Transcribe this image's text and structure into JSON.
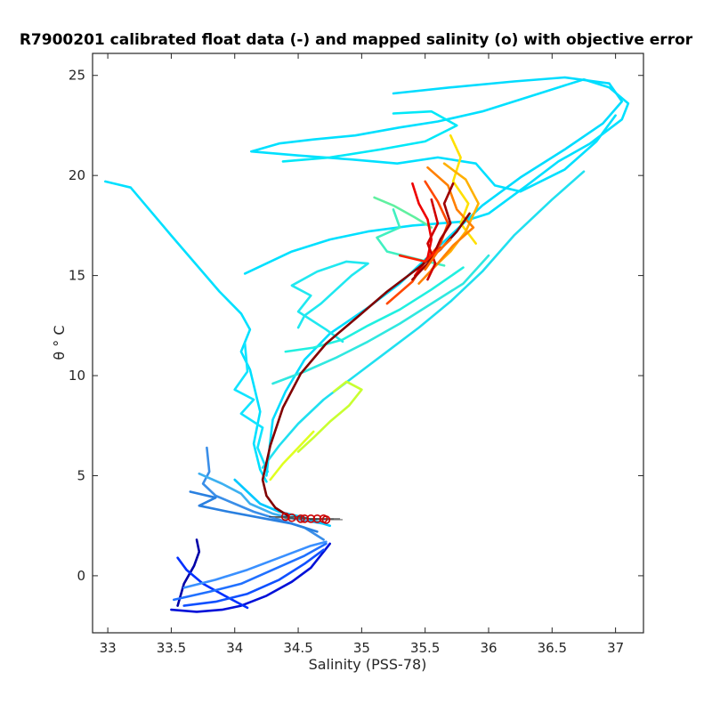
{
  "chart_data": {
    "type": "line",
    "title": "R7900201 calibrated float data (-) and mapped salinity (o) with objective error",
    "xlabel": "Salinity (PSS-78)",
    "ylabel": "θ ° C",
    "xlim": [
      32.88,
      37.22
    ],
    "ylim": [
      -2.85,
      26.1
    ],
    "xticks": [
      33,
      33.5,
      34,
      34.5,
      35,
      35.5,
      36,
      36.5,
      37
    ],
    "xtick_labels": [
      "33",
      "33.5",
      "34",
      "34.5",
      "35",
      "35.5",
      "36",
      "36.5",
      "37"
    ],
    "yticks": [
      0,
      5,
      10,
      15,
      20,
      25
    ],
    "ytick_labels": [
      "0",
      "5",
      "10",
      "15",
      "20",
      "25"
    ],
    "grid": false,
    "series": [
      {
        "color": "#0000a8",
        "points": [
          [
            33.55,
            -1.5
          ],
          [
            33.6,
            -0.4
          ],
          [
            33.68,
            0.5
          ],
          [
            33.72,
            1.2
          ],
          [
            33.7,
            1.8
          ]
        ]
      },
      {
        "color": "#0010d8",
        "points": [
          [
            33.5,
            -1.7
          ],
          [
            33.7,
            -1.8
          ],
          [
            33.9,
            -1.7
          ],
          [
            34.05,
            -1.5
          ],
          [
            34.25,
            -1.0
          ],
          [
            34.45,
            -0.3
          ],
          [
            34.6,
            0.4
          ],
          [
            34.7,
            1.2
          ],
          [
            34.75,
            1.6
          ]
        ]
      },
      {
        "color": "#0030ff",
        "points": [
          [
            33.55,
            0.9
          ],
          [
            33.62,
            0.3
          ],
          [
            33.75,
            -0.4
          ],
          [
            33.95,
            -1.1
          ],
          [
            34.1,
            -1.6
          ]
        ]
      },
      {
        "color": "#1050ff",
        "points": [
          [
            33.6,
            -1.5
          ],
          [
            33.85,
            -1.3
          ],
          [
            34.1,
            -0.9
          ],
          [
            34.35,
            -0.2
          ],
          [
            34.55,
            0.6
          ],
          [
            34.7,
            1.3
          ]
        ]
      },
      {
        "color": "#2070ff",
        "points": [
          [
            33.52,
            -1.2
          ],
          [
            33.8,
            -0.8
          ],
          [
            34.05,
            -0.4
          ],
          [
            34.3,
            0.3
          ],
          [
            34.55,
            1.0
          ],
          [
            34.72,
            1.6
          ]
        ]
      },
      {
        "color": "#3a90ff",
        "points": [
          [
            33.6,
            -0.6
          ],
          [
            33.85,
            -0.2
          ],
          [
            34.1,
            0.3
          ],
          [
            34.35,
            0.9
          ],
          [
            34.6,
            1.5
          ],
          [
            34.72,
            1.7
          ]
        ]
      },
      {
        "color": "#3a8ee8",
        "points": [
          [
            33.78,
            6.4
          ],
          [
            33.8,
            5.2
          ],
          [
            33.75,
            4.6
          ],
          [
            33.85,
            4.0
          ],
          [
            34.0,
            3.6
          ],
          [
            34.15,
            3.2
          ],
          [
            34.35,
            2.8
          ],
          [
            34.55,
            2.4
          ],
          [
            34.7,
            1.8
          ]
        ]
      },
      {
        "color": "#2a80e0",
        "points": [
          [
            33.65,
            4.2
          ],
          [
            33.85,
            3.9
          ],
          [
            33.72,
            3.5
          ],
          [
            33.95,
            3.2
          ],
          [
            34.2,
            2.9
          ],
          [
            34.45,
            2.6
          ],
          [
            34.65,
            2.2
          ]
        ]
      },
      {
        "color": "#3db0f0",
        "points": [
          [
            33.72,
            5.1
          ],
          [
            33.9,
            4.6
          ],
          [
            34.05,
            4.1
          ],
          [
            34.12,
            3.6
          ],
          [
            34.3,
            3.1
          ],
          [
            34.5,
            2.8
          ],
          [
            34.7,
            2.6
          ]
        ]
      },
      {
        "color": "#00c8ff",
        "points": [
          [
            34.0,
            4.8
          ],
          [
            34.1,
            4.2
          ],
          [
            34.2,
            3.6
          ],
          [
            34.35,
            3.2
          ],
          [
            34.55,
            2.9
          ],
          [
            34.75,
            2.5
          ]
        ]
      },
      {
        "color": "#00e0ff",
        "points": [
          [
            32.98,
            19.7
          ],
          [
            33.18,
            19.4
          ],
          [
            33.5,
            17.0
          ],
          [
            33.88,
            14.2
          ],
          [
            34.05,
            13.1
          ],
          [
            34.12,
            12.3
          ],
          [
            34.05,
            11.2
          ],
          [
            34.12,
            10.3
          ],
          [
            34.2,
            8.2
          ],
          [
            34.15,
            6.6
          ],
          [
            34.2,
            5.3
          ],
          [
            34.25,
            4.7
          ]
        ]
      },
      {
        "color": "#10e4ff",
        "points": [
          [
            34.08,
            11.6
          ],
          [
            34.1,
            10.2
          ],
          [
            34.0,
            9.3
          ],
          [
            34.15,
            8.8
          ],
          [
            34.05,
            8.1
          ],
          [
            34.22,
            7.4
          ],
          [
            34.18,
            6.4
          ],
          [
            34.26,
            5.2
          ]
        ]
      },
      {
        "color": "#00e0ff",
        "points": [
          [
            34.08,
            15.1
          ],
          [
            34.45,
            16.2
          ],
          [
            34.75,
            16.8
          ],
          [
            35.05,
            17.2
          ],
          [
            35.4,
            17.5
          ],
          [
            35.8,
            17.7
          ],
          [
            36.0,
            18.1
          ],
          [
            36.3,
            19.5
          ],
          [
            36.55,
            20.7
          ],
          [
            36.8,
            21.6
          ],
          [
            37.05,
            22.8
          ],
          [
            37.1,
            23.6
          ],
          [
            36.95,
            24.4
          ],
          [
            36.75,
            24.8
          ],
          [
            36.55,
            24.4
          ],
          [
            36.25,
            23.8
          ],
          [
            35.95,
            23.2
          ],
          [
            35.6,
            22.7
          ],
          [
            35.3,
            22.4
          ],
          [
            34.95,
            22.0
          ],
          [
            34.62,
            21.8
          ],
          [
            34.35,
            21.6
          ],
          [
            34.13,
            21.2
          ],
          [
            34.5,
            21.0
          ],
          [
            34.92,
            20.8
          ],
          [
            35.28,
            20.6
          ],
          [
            35.6,
            20.9
          ],
          [
            35.9,
            20.6
          ],
          [
            36.05,
            19.5
          ],
          [
            36.25,
            19.2
          ],
          [
            36.6,
            20.3
          ],
          [
            36.85,
            21.7
          ],
          [
            37.0,
            23.0
          ]
        ]
      },
      {
        "color": "#00dcff",
        "points": [
          [
            35.25,
            24.1
          ],
          [
            35.7,
            24.4
          ],
          [
            36.2,
            24.7
          ],
          [
            36.6,
            24.9
          ],
          [
            36.95,
            24.6
          ],
          [
            37.05,
            23.7
          ],
          [
            36.9,
            22.6
          ],
          [
            36.6,
            21.3
          ],
          [
            36.25,
            19.9
          ],
          [
            35.95,
            18.5
          ],
          [
            35.75,
            17.3
          ],
          [
            35.55,
            16.1
          ],
          [
            35.3,
            14.6
          ],
          [
            35.05,
            13.4
          ],
          [
            34.75,
            12.1
          ],
          [
            34.55,
            10.8
          ],
          [
            34.4,
            9.2
          ],
          [
            34.3,
            7.8
          ],
          [
            34.27,
            6.2
          ],
          [
            34.25,
            5.0
          ]
        ]
      },
      {
        "color": "#00e8f8",
        "points": [
          [
            35.25,
            23.1
          ],
          [
            35.55,
            23.2
          ],
          [
            35.75,
            22.5
          ],
          [
            35.5,
            21.7
          ],
          [
            35.15,
            21.3
          ],
          [
            34.75,
            20.9
          ],
          [
            34.38,
            20.7
          ]
        ]
      },
      {
        "color": "#20e8f0",
        "points": [
          [
            34.5,
            12.4
          ],
          [
            34.55,
            13.0
          ],
          [
            34.68,
            13.6
          ],
          [
            34.8,
            14.3
          ],
          [
            34.92,
            15.0
          ],
          [
            35.05,
            15.6
          ],
          [
            34.88,
            15.7
          ],
          [
            34.65,
            15.2
          ],
          [
            34.45,
            14.5
          ],
          [
            34.6,
            14.0
          ],
          [
            34.5,
            13.2
          ],
          [
            34.72,
            12.3
          ],
          [
            34.85,
            11.7
          ]
        ]
      },
      {
        "color": "#20f0e0",
        "points": [
          [
            34.4,
            11.2
          ],
          [
            34.62,
            11.4
          ],
          [
            34.85,
            11.8
          ],
          [
            35.05,
            12.5
          ],
          [
            35.3,
            13.3
          ],
          [
            35.55,
            14.3
          ],
          [
            35.8,
            15.4
          ]
        ]
      },
      {
        "color": "#30e8e0",
        "points": [
          [
            34.3,
            9.6
          ],
          [
            34.55,
            10.2
          ],
          [
            34.8,
            10.9
          ],
          [
            35.05,
            11.7
          ],
          [
            35.3,
            12.6
          ],
          [
            35.55,
            13.6
          ],
          [
            35.8,
            14.6
          ],
          [
            36.0,
            16.0
          ]
        ]
      },
      {
        "color": "#20e0f0",
        "points": [
          [
            34.22,
            5.4
          ],
          [
            34.35,
            6.5
          ],
          [
            34.5,
            7.6
          ],
          [
            34.7,
            8.8
          ],
          [
            34.95,
            10.0
          ],
          [
            35.2,
            11.2
          ],
          [
            35.45,
            12.4
          ],
          [
            35.7,
            13.7
          ],
          [
            35.95,
            15.2
          ],
          [
            36.2,
            17.0
          ],
          [
            36.5,
            18.8
          ],
          [
            36.75,
            20.2
          ]
        ]
      },
      {
        "color": "#40f0c0",
        "points": [
          [
            35.25,
            18.3
          ],
          [
            35.3,
            17.4
          ],
          [
            35.12,
            16.9
          ],
          [
            35.2,
            16.2
          ],
          [
            35.45,
            15.8
          ],
          [
            35.65,
            15.5
          ]
        ]
      },
      {
        "color": "#60f0a0",
        "points": [
          [
            35.1,
            18.9
          ],
          [
            35.25,
            18.5
          ],
          [
            35.42,
            17.9
          ],
          [
            35.55,
            17.4
          ]
        ]
      },
      {
        "color": "#c8ff30",
        "points": [
          [
            34.5,
            6.2
          ],
          [
            34.62,
            6.9
          ],
          [
            34.75,
            7.7
          ],
          [
            34.9,
            8.5
          ],
          [
            35.0,
            9.3
          ],
          [
            34.88,
            9.7
          ],
          [
            34.78,
            9.2
          ]
        ]
      },
      {
        "color": "#e0ff20",
        "points": [
          [
            34.28,
            4.8
          ],
          [
            34.38,
            5.6
          ],
          [
            34.5,
            6.4
          ],
          [
            34.62,
            7.2
          ]
        ]
      },
      {
        "color": "#ffe000",
        "points": [
          [
            35.7,
            22.0
          ],
          [
            35.78,
            20.9
          ],
          [
            35.72,
            19.7
          ],
          [
            35.84,
            18.6
          ],
          [
            35.78,
            17.6
          ],
          [
            35.9,
            16.6
          ]
        ]
      },
      {
        "color": "#ffb000",
        "points": [
          [
            35.65,
            20.6
          ],
          [
            35.82,
            19.8
          ],
          [
            35.92,
            18.6
          ],
          [
            35.82,
            17.2
          ],
          [
            35.7,
            16.2
          ],
          [
            35.55,
            15.3
          ]
        ]
      },
      {
        "color": "#ff8000",
        "points": [
          [
            35.52,
            20.4
          ],
          [
            35.68,
            19.5
          ],
          [
            35.75,
            18.3
          ],
          [
            35.88,
            17.4
          ],
          [
            35.72,
            16.5
          ],
          [
            35.6,
            15.6
          ],
          [
            35.45,
            14.6
          ]
        ]
      },
      {
        "color": "#ff4800",
        "points": [
          [
            35.5,
            19.7
          ],
          [
            35.6,
            18.7
          ],
          [
            35.68,
            17.6
          ],
          [
            35.62,
            16.6
          ],
          [
            35.5,
            15.7
          ],
          [
            35.4,
            14.7
          ],
          [
            35.2,
            13.6
          ]
        ]
      },
      {
        "color": "#ee0000",
        "points": [
          [
            35.4,
            19.6
          ],
          [
            35.45,
            18.6
          ],
          [
            35.52,
            17.8
          ],
          [
            35.55,
            16.8
          ],
          [
            35.52,
            15.9
          ],
          [
            35.42,
            15.0
          ]
        ]
      },
      {
        "color": "#d00000",
        "points": [
          [
            35.55,
            18.8
          ],
          [
            35.6,
            17.6
          ],
          [
            35.52,
            16.6
          ],
          [
            35.58,
            15.6
          ],
          [
            35.52,
            14.8
          ]
        ]
      },
      {
        "color": "#a00000",
        "points": [
          [
            35.72,
            19.6
          ],
          [
            35.65,
            18.6
          ],
          [
            35.7,
            17.6
          ],
          [
            35.62,
            16.8
          ],
          [
            35.55,
            15.8
          ],
          [
            35.4,
            14.8
          ]
        ]
      },
      {
        "color": "#800000",
        "points": [
          [
            35.85,
            18.1
          ],
          [
            35.75,
            17.2
          ],
          [
            35.62,
            16.3
          ],
          [
            35.45,
            15.4
          ],
          [
            35.2,
            14.2
          ],
          [
            34.98,
            13.0
          ],
          [
            34.72,
            11.6
          ],
          [
            34.52,
            10.1
          ],
          [
            34.38,
            8.4
          ],
          [
            34.28,
            6.5
          ],
          [
            34.22,
            4.8
          ],
          [
            34.25,
            4.0
          ],
          [
            34.32,
            3.4
          ],
          [
            34.42,
            3.0
          ]
        ]
      },
      {
        "color": "#ff2000",
        "points": [
          [
            35.3,
            16.0
          ],
          [
            35.5,
            15.7
          ],
          [
            35.62,
            16.4
          ]
        ]
      },
      {
        "color": "#ff6a00",
        "points": [
          [
            35.5,
            15.3
          ],
          [
            35.6,
            16.2
          ],
          [
            35.7,
            16.8
          ]
        ]
      }
    ],
    "mapped_points": [
      [
        34.4,
        2.95
      ],
      [
        34.45,
        2.9
      ],
      [
        34.52,
        2.85
      ],
      [
        34.55,
        2.85
      ],
      [
        34.6,
        2.85
      ],
      [
        34.65,
        2.85
      ],
      [
        34.7,
        2.85
      ],
      [
        34.72,
        2.8
      ]
    ],
    "error_bar_half_width": 0.13,
    "mapped_marker_color": "#cc0000"
  }
}
